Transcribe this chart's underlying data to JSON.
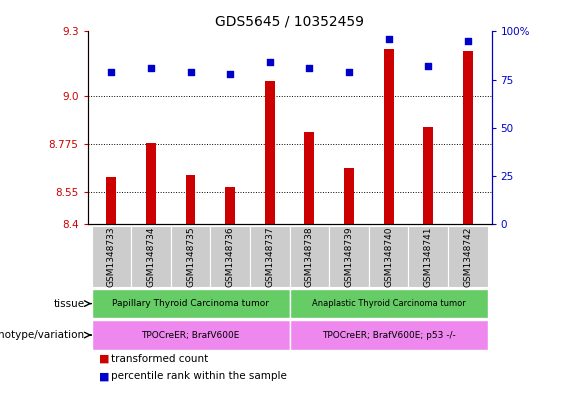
{
  "title": "GDS5645 / 10352459",
  "samples": [
    "GSM1348733",
    "GSM1348734",
    "GSM1348735",
    "GSM1348736",
    "GSM1348737",
    "GSM1348738",
    "GSM1348739",
    "GSM1348740",
    "GSM1348741",
    "GSM1348742"
  ],
  "transformed_count": [
    8.62,
    8.78,
    8.63,
    8.575,
    9.07,
    8.83,
    8.66,
    9.22,
    8.855,
    9.21
  ],
  "percentile_rank": [
    79,
    81,
    79,
    78,
    84,
    81,
    79,
    96,
    82,
    95
  ],
  "ylim_left": [
    8.4,
    9.3
  ],
  "ylim_right": [
    0,
    100
  ],
  "yticks_left": [
    8.4,
    8.55,
    8.775,
    9.0,
    9.3
  ],
  "yticks_right": [
    0,
    25,
    50,
    75,
    100
  ],
  "hlines": [
    9.0,
    8.775,
    8.55
  ],
  "bar_color": "#cc0000",
  "dot_color": "#0000cc",
  "bar_width": 0.25,
  "tissue_group1_label": "Papillary Thyroid Carcinoma tumor",
  "tissue_group2_label": "Anaplastic Thyroid Carcinoma tumor",
  "tissue_color": "#66cc66",
  "genotype_group1_label": "TPOCreER; BrafV600E",
  "genotype_group2_label": "TPOCreER; BrafV600E; p53 -/-",
  "genotype_color": "#ee88ee",
  "group1_samples": 5,
  "group2_samples": 5,
  "legend_bar_label": "transformed count",
  "legend_dot_label": "percentile rank within the sample",
  "tissue_label": "tissue",
  "genotype_label": "genotype/variation",
  "sample_bg_color": "#cccccc",
  "plot_bg_color": "#ffffff",
  "axis_color_left": "#cc0000",
  "axis_color_right": "#0000cc",
  "title_fontsize": 10,
  "tick_fontsize": 7.5,
  "sample_label_fontsize": 6.5,
  "legend_fontsize": 7.5
}
